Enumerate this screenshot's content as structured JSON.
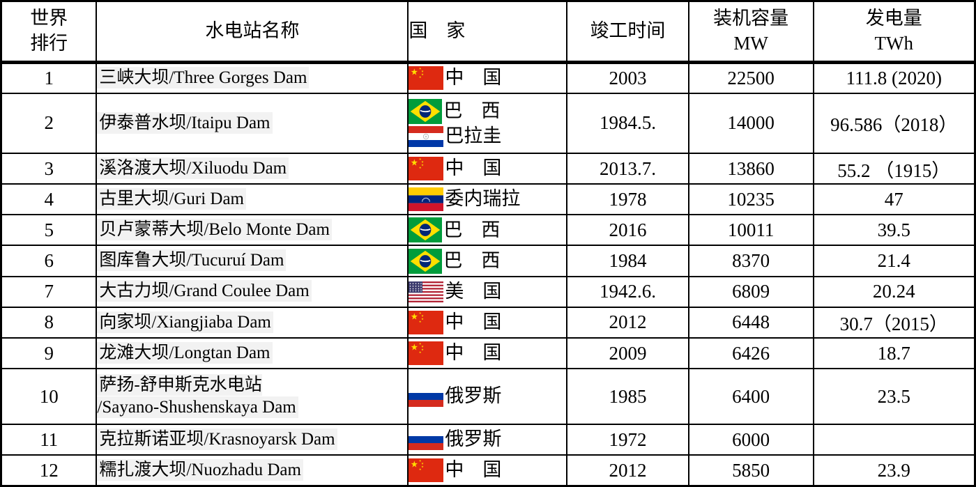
{
  "colors": {
    "border": "#000000",
    "text": "#000000",
    "name_highlight": "#f2f2f2"
  },
  "table": {
    "headers": [
      "世界\n排行",
      "水电站名称",
      "国　家",
      "竣工时间",
      "装机容量\nMW",
      "发电量\nTWh"
    ],
    "rows": [
      {
        "rank": "1",
        "name": "三峡大坝/Three Gorges Dam",
        "countries": [
          {
            "flag": "china",
            "label": "中　国"
          }
        ],
        "completion": "2003",
        "capacity_mw": "22500",
        "generation_twh": "111.8 (2020)"
      },
      {
        "rank": "2",
        "name": "伊泰普水坝/Itaipu Dam",
        "countries": [
          {
            "flag": "brazil",
            "label": "巴　西"
          },
          {
            "flag": "paraguay",
            "label": "巴拉圭"
          }
        ],
        "completion": "1984.5.",
        "capacity_mw": "14000",
        "generation_twh": "96.586（2018）"
      },
      {
        "rank": "3",
        "name": "溪洛渡大坝/Xiluodu Dam",
        "countries": [
          {
            "flag": "china",
            "label": "中　国"
          }
        ],
        "completion": "2013.7.",
        "capacity_mw": "13860",
        "generation_twh": "55.2 （1915）"
      },
      {
        "rank": "4",
        "name": "古里大坝/Guri Dam",
        "countries": [
          {
            "flag": "venezuela",
            "label": "委内瑞拉"
          }
        ],
        "completion": "1978",
        "capacity_mw": "10235",
        "generation_twh": "47"
      },
      {
        "rank": "5",
        "name": "贝卢蒙蒂大坝/Belo Monte Dam",
        "countries": [
          {
            "flag": "brazil",
            "label": "巴　西"
          }
        ],
        "completion": "2016",
        "capacity_mw": "10011",
        "generation_twh": "39.5"
      },
      {
        "rank": "6",
        "name": "图库鲁大坝/Tucuruí Dam",
        "countries": [
          {
            "flag": "brazil",
            "label": "巴　西"
          }
        ],
        "completion": "1984",
        "capacity_mw": "8370",
        "generation_twh": "21.4"
      },
      {
        "rank": "7",
        "name": "大古力坝/Grand Coulee Dam",
        "countries": [
          {
            "flag": "usa",
            "label": "美　国"
          }
        ],
        "completion": "1942.6.",
        "capacity_mw": "6809",
        "generation_twh": "20.24"
      },
      {
        "rank": "8",
        "name": "向家坝/Xiangjiaba Dam",
        "countries": [
          {
            "flag": "china",
            "label": "中　国"
          }
        ],
        "completion": "2012",
        "capacity_mw": "6448",
        "generation_twh": "30.7（2015）"
      },
      {
        "rank": "9",
        "name": "龙滩大坝/Longtan Dam",
        "countries": [
          {
            "flag": "china",
            "label": "中　国"
          }
        ],
        "completion": "2009",
        "capacity_mw": "6426",
        "generation_twh": "18.7"
      },
      {
        "rank": "10",
        "name": "萨扬-舒申斯克水电站\n/Sayano-Shushenskaya Dam",
        "countries": [
          {
            "flag": "russia",
            "label": "俄罗斯"
          }
        ],
        "completion": "1985",
        "capacity_mw": "6400",
        "generation_twh": "23.5"
      },
      {
        "rank": "11",
        "name": "克拉斯诺亚坝/Krasnoyarsk Dam",
        "countries": [
          {
            "flag": "russia",
            "label": "俄罗斯"
          }
        ],
        "completion": "1972",
        "capacity_mw": "6000",
        "generation_twh": ""
      },
      {
        "rank": "12",
        "name": "糯扎渡大坝/Nuozhadu Dam",
        "countries": [
          {
            "flag": "china",
            "label": "中　国"
          }
        ],
        "completion": "2012",
        "capacity_mw": "5850",
        "generation_twh": "23.9"
      }
    ]
  }
}
